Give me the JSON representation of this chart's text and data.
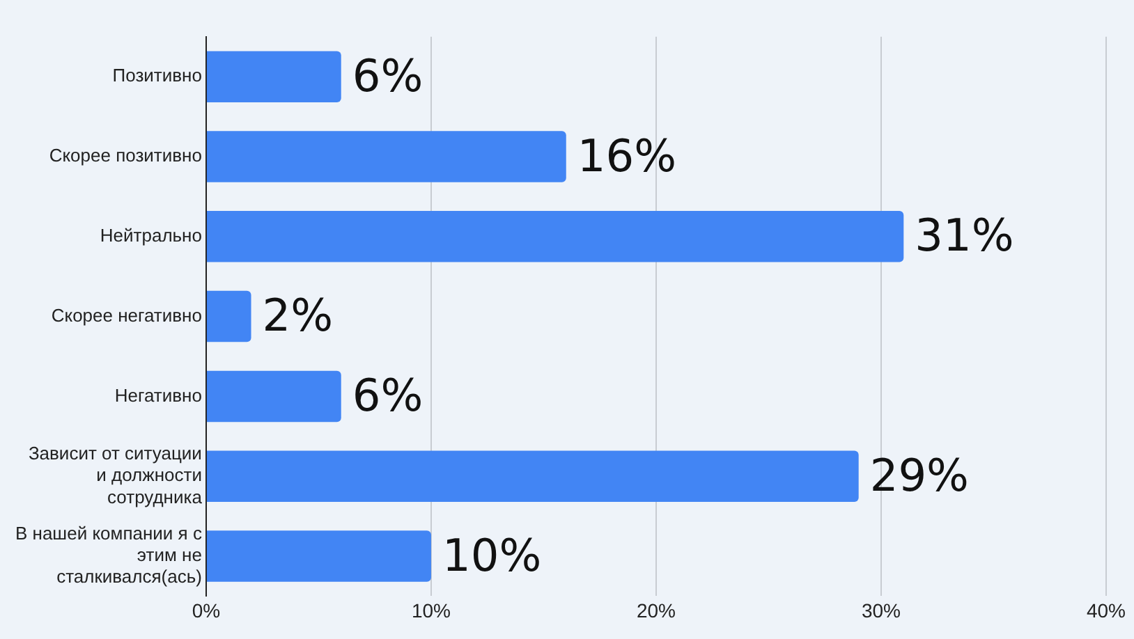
{
  "chart_data": {
    "type": "bar",
    "orientation": "horizontal",
    "categories": [
      "Позитивно",
      "Скорее позитивно",
      "Нейтрально",
      "Скорее негативно",
      "Негативно",
      "Зависит от ситуации\nи должности\nсотрудника",
      "В нашей компании я с\nэтим не\nсталкивался(ась)"
    ],
    "values": [
      6,
      16,
      31,
      2,
      6,
      29,
      10
    ],
    "value_labels": [
      "6%",
      "16%",
      "31%",
      "2%",
      "6%",
      "29%",
      "10%"
    ],
    "color": "#4285f4",
    "xlim": [
      0,
      40
    ],
    "xticks": [
      {
        "value": 0,
        "label": "0%"
      },
      {
        "value": 10,
        "label": "10%"
      },
      {
        "value": 20,
        "label": "20%"
      },
      {
        "value": 30,
        "label": "30%"
      },
      {
        "value": 40,
        "label": "40%"
      }
    ],
    "grid": "x",
    "legend": false
  }
}
